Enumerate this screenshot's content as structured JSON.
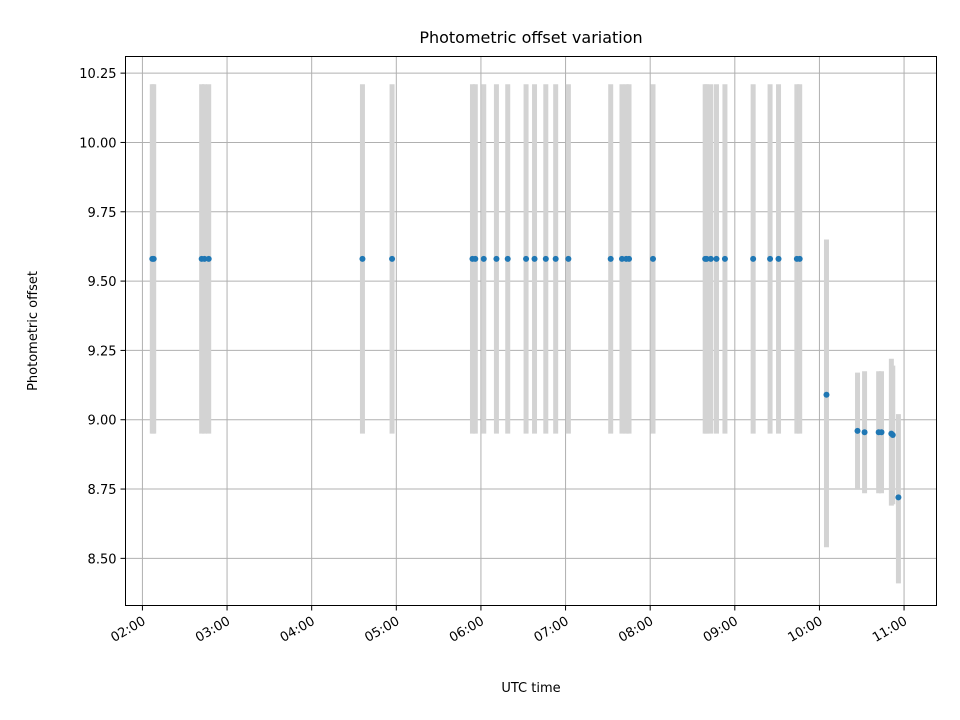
{
  "chart_data": {
    "type": "scatter",
    "title": "Photometric offset variation",
    "xlabel": "UTC time",
    "ylabel": "Photometric offset",
    "x_axis_kind": "time",
    "xlim": [
      "01:48",
      "11:23"
    ],
    "ylim": [
      8.33,
      10.31
    ],
    "x_ticks": [
      "02:00",
      "03:00",
      "04:00",
      "05:00",
      "06:00",
      "07:00",
      "08:00",
      "09:00",
      "10:00",
      "11:00"
    ],
    "y_ticks": [
      "8.50",
      "8.75",
      "9.00",
      "9.25",
      "9.50",
      "9.75",
      "10.00",
      "10.25"
    ],
    "grid": true,
    "point_color": "#1f77b4",
    "errorbar_color": "#d3d3d3",
    "points": [
      {
        "x": "02:07",
        "y": 9.58,
        "err_low": 0.63,
        "err_high": 0.63
      },
      {
        "x": "02:08",
        "y": 9.58,
        "err_low": 0.63,
        "err_high": 0.63
      },
      {
        "x": "02:42",
        "y": 9.58,
        "err_low": 0.63,
        "err_high": 0.63
      },
      {
        "x": "02:44",
        "y": 9.58,
        "err_low": 0.63,
        "err_high": 0.63
      },
      {
        "x": "02:47",
        "y": 9.58,
        "err_low": 0.63,
        "err_high": 0.63
      },
      {
        "x": "04:36",
        "y": 9.58,
        "err_low": 0.63,
        "err_high": 0.63
      },
      {
        "x": "04:57",
        "y": 9.58,
        "err_low": 0.63,
        "err_high": 0.63
      },
      {
        "x": "05:54",
        "y": 9.58,
        "err_low": 0.63,
        "err_high": 0.63
      },
      {
        "x": "05:56",
        "y": 9.58,
        "err_low": 0.63,
        "err_high": 0.63
      },
      {
        "x": "06:02",
        "y": 9.58,
        "err_low": 0.63,
        "err_high": 0.63
      },
      {
        "x": "06:11",
        "y": 9.58,
        "err_low": 0.63,
        "err_high": 0.63
      },
      {
        "x": "06:19",
        "y": 9.58,
        "err_low": 0.63,
        "err_high": 0.63
      },
      {
        "x": "06:32",
        "y": 9.58,
        "err_low": 0.63,
        "err_high": 0.63
      },
      {
        "x": "06:38",
        "y": 9.58,
        "err_low": 0.63,
        "err_high": 0.63
      },
      {
        "x": "06:46",
        "y": 9.58,
        "err_low": 0.63,
        "err_high": 0.63
      },
      {
        "x": "06:53",
        "y": 9.58,
        "err_low": 0.63,
        "err_high": 0.63
      },
      {
        "x": "07:02",
        "y": 9.58,
        "err_low": 0.63,
        "err_high": 0.63
      },
      {
        "x": "07:32",
        "y": 9.58,
        "err_low": 0.63,
        "err_high": 0.63
      },
      {
        "x": "07:40",
        "y": 9.58,
        "err_low": 0.63,
        "err_high": 0.63
      },
      {
        "x": "07:43",
        "y": 9.58,
        "err_low": 0.63,
        "err_high": 0.63
      },
      {
        "x": "07:45",
        "y": 9.58,
        "err_low": 0.63,
        "err_high": 0.63
      },
      {
        "x": "08:02",
        "y": 9.58,
        "err_low": 0.63,
        "err_high": 0.63
      },
      {
        "x": "08:39",
        "y": 9.58,
        "err_low": 0.63,
        "err_high": 0.63
      },
      {
        "x": "08:40",
        "y": 9.58,
        "err_low": 0.63,
        "err_high": 0.63
      },
      {
        "x": "08:43",
        "y": 9.58,
        "err_low": 0.63,
        "err_high": 0.63
      },
      {
        "x": "08:47",
        "y": 9.58,
        "err_low": 0.63,
        "err_high": 0.63
      },
      {
        "x": "08:53",
        "y": 9.58,
        "err_low": 0.63,
        "err_high": 0.63
      },
      {
        "x": "09:13",
        "y": 9.58,
        "err_low": 0.63,
        "err_high": 0.63
      },
      {
        "x": "09:25",
        "y": 9.58,
        "err_low": 0.63,
        "err_high": 0.63
      },
      {
        "x": "09:31",
        "y": 9.58,
        "err_low": 0.63,
        "err_high": 0.63
      },
      {
        "x": "09:44",
        "y": 9.58,
        "err_low": 0.63,
        "err_high": 0.63
      },
      {
        "x": "09:46",
        "y": 9.58,
        "err_low": 0.63,
        "err_high": 0.63
      },
      {
        "x": "10:05",
        "y": 9.09,
        "err_low": 0.55,
        "err_high": 0.56
      },
      {
        "x": "10:27",
        "y": 8.96,
        "err_low": 0.21,
        "err_high": 0.21
      },
      {
        "x": "10:32",
        "y": 8.955,
        "err_low": 0.22,
        "err_high": 0.22
      },
      {
        "x": "10:42",
        "y": 8.955,
        "err_low": 0.22,
        "err_high": 0.22
      },
      {
        "x": "10:44",
        "y": 8.955,
        "err_low": 0.22,
        "err_high": 0.22
      },
      {
        "x": "10:51",
        "y": 8.95,
        "err_low": 0.26,
        "err_high": 0.27
      },
      {
        "x": "10:52",
        "y": 8.945,
        "err_low": 0.25,
        "err_high": 0.25
      },
      {
        "x": "10:56",
        "y": 8.72,
        "err_low": 0.31,
        "err_high": 0.3
      }
    ]
  }
}
